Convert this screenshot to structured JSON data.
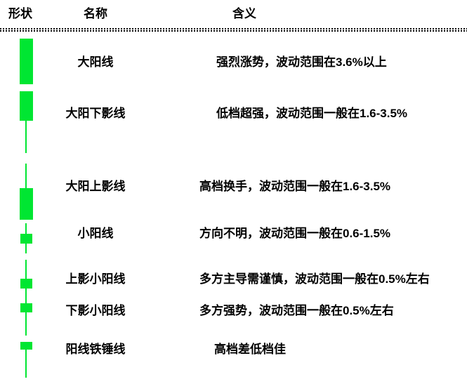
{
  "colors": {
    "candle_green": "#00e632",
    "text": "#000000",
    "background": "#ffffff"
  },
  "header": {
    "shape_col": "形状",
    "name_col": "名称",
    "meaning_col": "含义"
  },
  "rows": [
    {
      "name": "大阳线",
      "meaning": "强烈涨势，波动范围在3.6%以上",
      "shape": "tall-green-body-no-wicks"
    },
    {
      "name": "大阳下影线",
      "meaning": "低档超强，波动范围一般在1.6-3.5%",
      "shape": "large-green-body-long-lower-wick"
    },
    {
      "name": "大阳上影线",
      "meaning": "高档换手，波动范围一般在1.6-3.5%",
      "shape": "large-green-body-long-upper-wick"
    },
    {
      "name": "小阳线",
      "meaning": "方向不明，波动范围一般在0.6-1.5%",
      "shape": "small-green-body-short-upper-and-lower-wicks"
    },
    {
      "name": "上影小阳线",
      "meaning": "多方主导需谨慎，波动范围一般在0.5%左右",
      "shape": "small-green-body-long-upper-wick-short-lower-wick"
    },
    {
      "name": "下影小阳线",
      "meaning": "多方强势，波动范围一般在0.5%左右",
      "shape": "small-green-body-short-upper-wick-long-lower-wick"
    },
    {
      "name": "阳线铁锤线",
      "meaning": "高档差低档佳",
      "shape": "hammer-small-green-body-long-lower-wick"
    }
  ]
}
